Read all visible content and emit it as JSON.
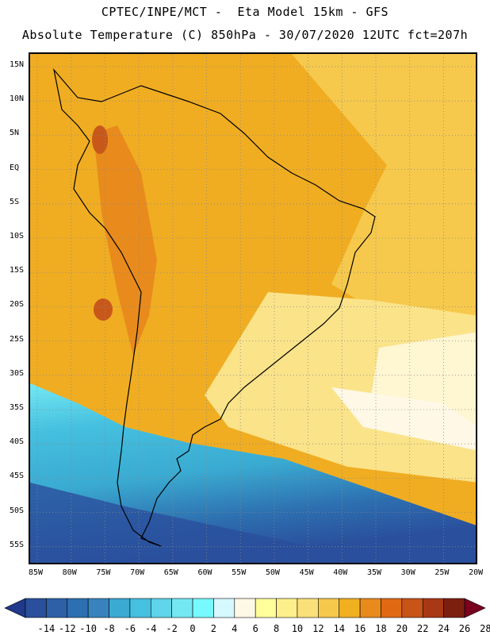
{
  "header": {
    "line1": "CPTEC/INPE/MCT -  Eta Model 15km - GFS",
    "line2": "Absolute Temperature (C) 850hPa - 30/07/2020 12UTC fct=207h"
  },
  "map": {
    "region": "South America",
    "lat_labels": [
      "15N",
      "10N",
      "5N",
      "EQ",
      "5S",
      "10S",
      "15S",
      "20S",
      "25S",
      "30S",
      "35S",
      "40S",
      "45S",
      "50S",
      "55S"
    ],
    "lon_labels": [
      "85W",
      "80W",
      "75W",
      "70W",
      "65W",
      "60W",
      "55W",
      "50W",
      "45W",
      "40W",
      "35W",
      "30W",
      "25W",
      "20W"
    ],
    "colors": {
      "ocean_warm": "#f5c242",
      "land_warm": "#f0a41c",
      "land_hot": "#e2801e",
      "hot_spot": "#c8581a",
      "mild": "#fbe38a",
      "pale": "#fff6d2",
      "cold_light": "#5fd4ea",
      "cold_mid": "#3aaad1",
      "cold_dark": "#2d6fb0",
      "coldest": "#2a4f9c",
      "coast": "#000000"
    }
  },
  "legend": {
    "labels": [
      "-14",
      "-12",
      "-10",
      "-8",
      "-6",
      "-4",
      "-2",
      "0",
      "2",
      "4",
      "6",
      "8",
      "10",
      "12",
      "14",
      "16",
      "18",
      "20",
      "22",
      "24",
      "26",
      "28"
    ],
    "colors": [
      "#20398a",
      "#2a4f9c",
      "#2e60a8",
      "#2d6fb0",
      "#3883be",
      "#3aaad1",
      "#45c0df",
      "#5fd4ea",
      "#74e8f2",
      "#77f9ff",
      "#d6f8ff",
      "#fff8e6",
      "#fffe9b",
      "#fdf08c",
      "#fbe07a",
      "#f6c94c",
      "#f0b020",
      "#e88b1c",
      "#e06a14",
      "#c85418",
      "#a83816",
      "#7d1f10",
      "#7a0020"
    ]
  }
}
